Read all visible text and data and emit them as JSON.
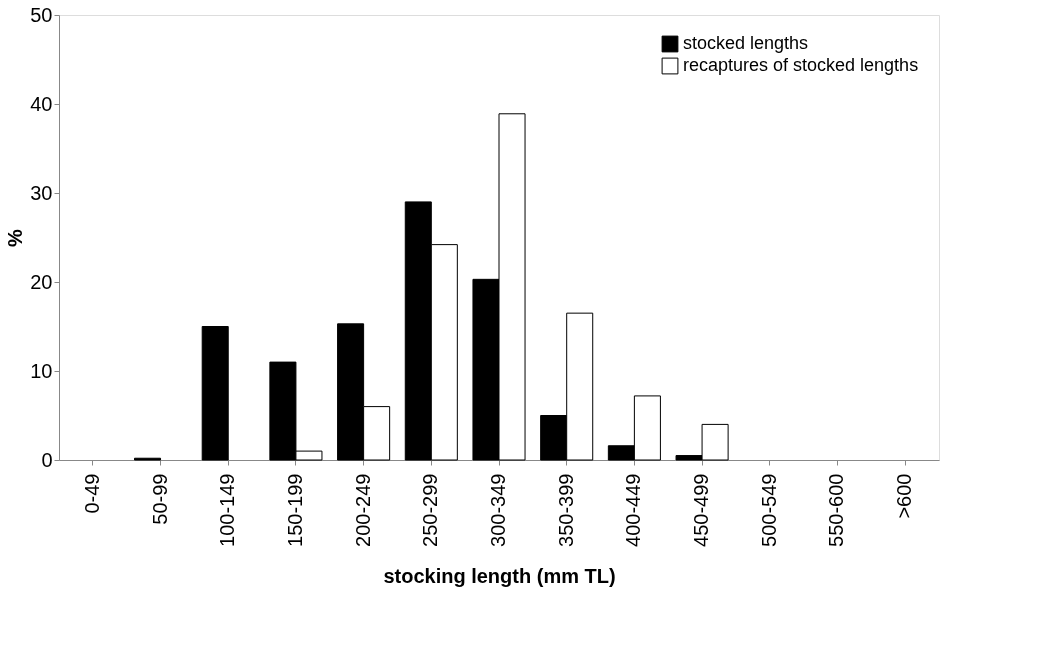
{
  "chart_data": {
    "type": "bar",
    "xlabel": "stocking length (mm TL)",
    "ylabel": "%",
    "categories": [
      "0-49",
      "50-99",
      "100-149",
      "150-199",
      "200-249",
      "250-299",
      "300-349",
      "350-399",
      "400-449",
      "450-499",
      "500-549",
      "550-600",
      ">600"
    ],
    "series": [
      {
        "name": "stocked lengths",
        "color": "#000000",
        "values": [
          0,
          0.2,
          15,
          11,
          15.3,
          29,
          20.3,
          5,
          1.6,
          0.5,
          0,
          0,
          0
        ]
      },
      {
        "name": "recaptures of stocked lengths",
        "color": "#ffffff",
        "values": [
          0,
          0,
          0,
          1,
          6,
          24.2,
          38.9,
          16.5,
          7.2,
          4,
          0,
          0,
          0
        ]
      }
    ],
    "ylim": [
      0,
      50
    ],
    "yticks": [
      0,
      10,
      20,
      30,
      40,
      50
    ],
    "grid": false,
    "legend": "top right"
  }
}
